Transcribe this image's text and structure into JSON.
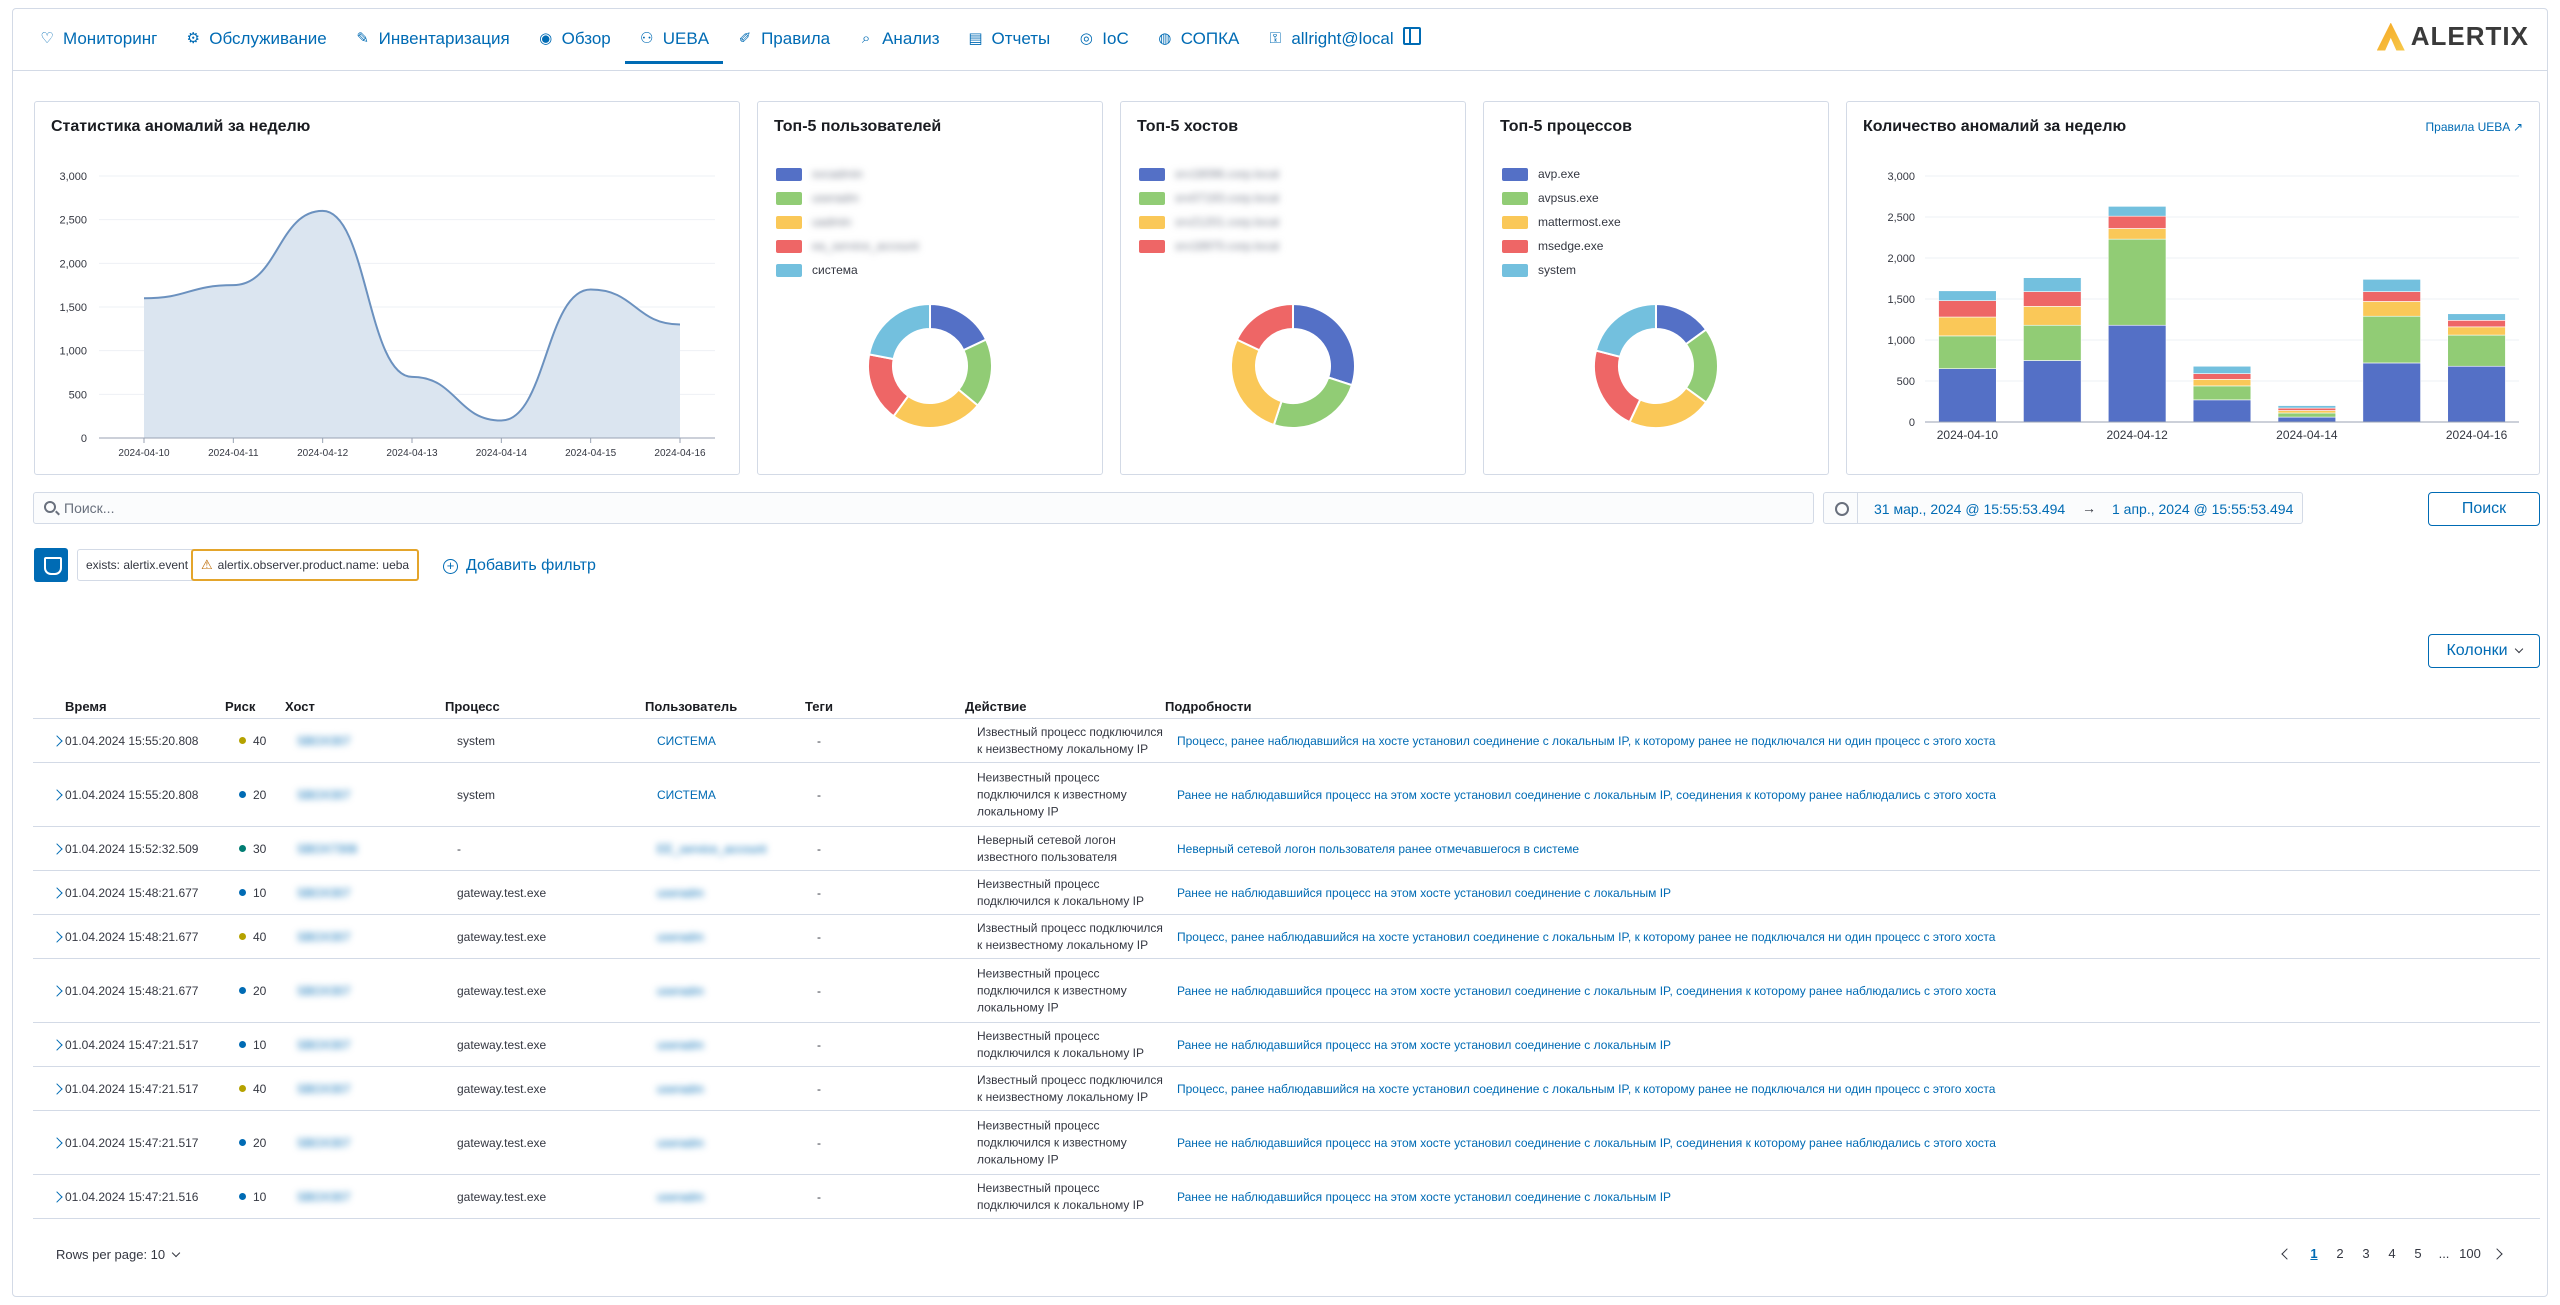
{
  "nav": {
    "items": [
      {
        "label": "Мониторинг",
        "icon": "heart-pulse-icon"
      },
      {
        "label": "Обслуживание",
        "icon": "gear-icon"
      },
      {
        "label": "Инвентаризация",
        "icon": "clipboard-edit-icon"
      },
      {
        "label": "Обзор",
        "icon": "eye-icon"
      },
      {
        "label": "UEBA",
        "icon": "users-icon"
      },
      {
        "label": "Правила",
        "icon": "pencil-icon"
      },
      {
        "label": "Анализ",
        "icon": "search-doc-icon"
      },
      {
        "label": "Отчеты",
        "icon": "report-icon"
      },
      {
        "label": "IoC",
        "icon": "fingerprint-icon"
      },
      {
        "label": "СОПКА",
        "icon": "broadcast-icon"
      },
      {
        "label": "allright@local",
        "icon": "user-lock-icon"
      }
    ],
    "active": "UEBA",
    "logo": "ALERTIX"
  },
  "panels": {
    "weekly_stats": {
      "title": "Статистика аномалий за неделю"
    },
    "top_users": {
      "title": "Топ-5 пользователей",
      "legend": [
        "svcadmin",
        "useradm",
        "uadmin",
        "ea_service_account",
        "система"
      ]
    },
    "top_hosts": {
      "title": "Топ-5 хостов",
      "legend": [
        "srv18096.corp.local",
        "srv07193.corp.local",
        "srv21201.corp.local",
        "srv18970.corp.local"
      ]
    },
    "top_processes": {
      "title": "Топ-5 процессов",
      "legend": [
        "avp.exe",
        "avpsus.exe",
        "mattermost.exe",
        "msedge.exe",
        "system"
      ]
    },
    "weekly_count": {
      "title": "Количество аномалий за неделю",
      "link": "Правила UEBA"
    }
  },
  "colors": {
    "blue": "#5470c6",
    "green": "#91cc75",
    "yellow": "#fac858",
    "red": "#ee6666",
    "cyan": "#73c0de",
    "area": "#dbe5f0",
    "line": "#6b91bf",
    "accent": "#006bb4"
  },
  "chart_data": [
    {
      "type": "area",
      "title": "Статистика аномалий за неделю",
      "x": [
        "2024-04-10",
        "2024-04-11",
        "2024-04-12",
        "2024-04-13",
        "2024-04-14",
        "2024-04-15",
        "2024-04-16"
      ],
      "values": [
        1600,
        1750,
        2600,
        700,
        200,
        1700,
        1300
      ],
      "ylim": [
        0,
        3000
      ],
      "yticks": [
        "0",
        "500",
        "1,000",
        "1,500",
        "2,000",
        "2,500",
        "3,000"
      ],
      "grid": true
    },
    {
      "type": "pie",
      "title": "Топ-5 пользователей",
      "labels": [
        "svcadmin",
        "useradm",
        "uadmin",
        "ea_service_account",
        "система"
      ],
      "values": [
        18,
        18,
        24,
        18,
        22
      ]
    },
    {
      "type": "pie",
      "title": "Топ-5 хостов",
      "labels": [
        "srv18096.corp.local",
        "srv07193.corp.local",
        "srv21201.corp.local",
        "srv18970.corp.local"
      ],
      "values": [
        30,
        25,
        27,
        18
      ]
    },
    {
      "type": "pie",
      "title": "Топ-5 процессов",
      "labels": [
        "avp.exe",
        "avpsus.exe",
        "mattermost.exe",
        "msedge.exe",
        "system"
      ],
      "values": [
        15,
        20,
        22,
        22,
        21
      ]
    },
    {
      "type": "bar",
      "title": "Количество аномалий за неделю",
      "categories": [
        "2024-04-10",
        "2024-04-11",
        "2024-04-12",
        "2024-04-13",
        "2024-04-14",
        "2024-04-15",
        "2024-04-16"
      ],
      "xticks": [
        "2024-04-10",
        "2024-04-12",
        "2024-04-14",
        "2024-04-16"
      ],
      "ylim": [
        0,
        3000
      ],
      "yticks": [
        "0",
        "250",
        "500",
        "750",
        "1,000",
        "1,250",
        "1,500",
        "1,750",
        "2,000",
        "2,250",
        "2,500",
        "2,750",
        "3,000"
      ],
      "series": [
        {
          "values": [
            650,
            750,
            1180,
            270,
            60,
            720,
            680
          ]
        },
        {
          "values": [
            400,
            430,
            1050,
            170,
            50,
            570,
            380
          ]
        },
        {
          "values": [
            230,
            230,
            130,
            80,
            30,
            180,
            100
          ]
        },
        {
          "values": [
            200,
            180,
            150,
            70,
            30,
            120,
            80
          ]
        },
        {
          "values": [
            120,
            170,
            120,
            90,
            30,
            150,
            80
          ]
        }
      ],
      "grid": true
    }
  ],
  "search": {
    "placeholder": "Поиск...",
    "button": "Поиск"
  },
  "date_range": {
    "from": "31 мар., 2024 @ 15:55:53.494",
    "arrow": "→",
    "to": "1 апр., 2024 @ 15:55:53.494"
  },
  "filters": {
    "chip1": "exists: alertix.event",
    "chip2": "alertix.observer.product.name: ueba",
    "add": "Добавить фильтр"
  },
  "columns_button": "Колонки",
  "table": {
    "headers": {
      "time": "Время",
      "risk": "Риск",
      "host": "Хост",
      "process": "Процесс",
      "user": "Пользователь",
      "tags": "Теги",
      "action": "Действие",
      "details": "Подробности"
    },
    "rows": [
      {
        "time": "01.04.2024 15:55:20.808",
        "risk": "40",
        "risk_color": "#b5a200",
        "host": "SBOX307",
        "process": "system",
        "user": "СИСТЕМА",
        "user_blur": false,
        "tags": "-",
        "action": "Известный процесс подключился к неизвестному локальному IP",
        "details": "Процесс, ранее наблюдавшийся на хосте установил соединение с локальным IP, к которому ранее не подключался ни один процесс с этого хоста",
        "h": 44
      },
      {
        "time": "01.04.2024 15:55:20.808",
        "risk": "20",
        "risk_color": "#006bb4",
        "host": "SBOX307",
        "process": "system",
        "user": "СИСТЕМА",
        "user_blur": false,
        "tags": "-",
        "action": "Неизвестный процесс подключился к известному локальному IP",
        "details": "Ранее не наблюдавшийся процесс на этом хосте установил соединение с локальным IP, соединения к которому ранее наблюдались с этого хоста",
        "h": 64
      },
      {
        "time": "01.04.2024 15:52:32.509",
        "risk": "30",
        "risk_color": "#017d73",
        "host": "SBOX7308",
        "process": "-",
        "user": "EE_service_account",
        "user_blur": true,
        "tags": "-",
        "action": "Неверный сетевой логон известного пользователя",
        "details": "Неверный сетевой логон пользователя ранее отмечавшегося в системе",
        "h": 44
      },
      {
        "time": "01.04.2024 15:48:21.677",
        "risk": "10",
        "risk_color": "#006bb4",
        "host": "SBOX307",
        "process": "gateway.test.exe",
        "user": "useradm",
        "user_blur": true,
        "tags": "-",
        "action": "Неизвестный процесс подключился к локальному IP",
        "details": "Ранее не наблюдавшийся процесс на этом хосте установил соединение с локальным IP",
        "h": 44
      },
      {
        "time": "01.04.2024 15:48:21.677",
        "risk": "40",
        "risk_color": "#b5a200",
        "host": "SBOX307",
        "process": "gateway.test.exe",
        "user": "useradm",
        "user_blur": true,
        "tags": "-",
        "action": "Известный процесс подключился к неизвестному локальному IP",
        "details": "Процесс, ранее наблюдавшийся на хосте установил соединение с локальным IP, к которому ранее не подключался ни один процесс с этого хоста",
        "h": 44
      },
      {
        "time": "01.04.2024 15:48:21.677",
        "risk": "20",
        "risk_color": "#006bb4",
        "host": "SBOX307",
        "process": "gateway.test.exe",
        "user": "useradm",
        "user_blur": true,
        "tags": "-",
        "action": "Неизвестный процесс подключился к известному локальному IP",
        "details": "Ранее не наблюдавшийся процесс на этом хосте установил соединение с локальным IP, соединения к которому ранее наблюдались с этого хоста",
        "h": 64
      },
      {
        "time": "01.04.2024 15:47:21.517",
        "risk": "10",
        "risk_color": "#006bb4",
        "host": "SBOX307",
        "process": "gateway.test.exe",
        "user": "useradm",
        "user_blur": true,
        "tags": "-",
        "action": "Неизвестный процесс подключился к локальному IP",
        "details": "Ранее не наблюдавшийся процесс на этом хосте установил соединение с локальным IP",
        "h": 44
      },
      {
        "time": "01.04.2024 15:47:21.517",
        "risk": "40",
        "risk_color": "#b5a200",
        "host": "SBOX307",
        "process": "gateway.test.exe",
        "user": "useradm",
        "user_blur": true,
        "tags": "-",
        "action": "Известный процесс подключился к неизвестному локальному IP",
        "details": "Процесс, ранее наблюдавшийся на хосте установил соединение с локальным IP, к которому ранее не подключался ни один процесс с этого хоста",
        "h": 44
      },
      {
        "time": "01.04.2024 15:47:21.517",
        "risk": "20",
        "risk_color": "#006bb4",
        "host": "SBOX307",
        "process": "gateway.test.exe",
        "user": "useradm",
        "user_blur": true,
        "tags": "-",
        "action": "Неизвестный процесс подключился к известному локальному IP",
        "details": "Ранее не наблюдавшийся процесс на этом хосте установил соединение с локальным IP, соединения к которому ранее наблюдались с этого хоста",
        "h": 64
      },
      {
        "time": "01.04.2024 15:47:21.516",
        "risk": "10",
        "risk_color": "#006bb4",
        "host": "SBOX307",
        "process": "gateway.test.exe",
        "user": "useradm",
        "user_blur": true,
        "tags": "-",
        "action": "Неизвестный процесс подключился к локальному IP",
        "details": "Ранее не наблюдавшийся процесс на этом хосте установил соединение с локальным IP",
        "h": 44
      }
    ]
  },
  "footer": {
    "rows_per_page": "Rows per page: 10",
    "pages": [
      "1",
      "2",
      "3",
      "4",
      "5",
      "...",
      "100"
    ],
    "active_page": "1"
  }
}
